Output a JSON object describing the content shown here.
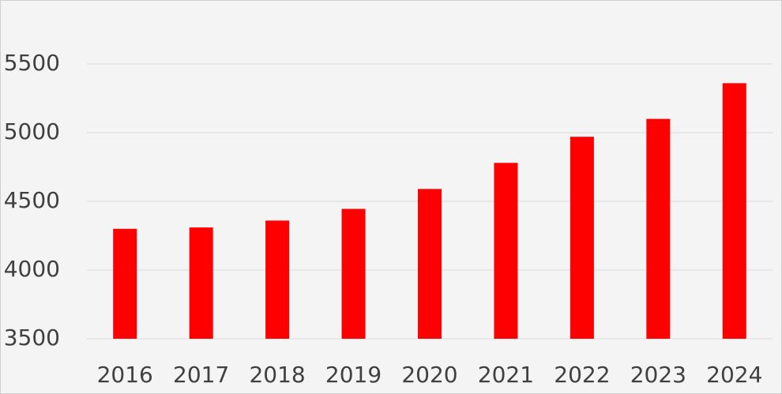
{
  "chart_data": {
    "type": "bar",
    "categories": [
      "2016",
      "2017",
      "2018",
      "2019",
      "2020",
      "2021",
      "2022",
      "2023",
      "2024"
    ],
    "values": [
      4300,
      4310,
      4360,
      4445,
      4590,
      4780,
      4970,
      5100,
      5360
    ],
    "color": "#ff0000",
    "ylim": [
      3500,
      5500
    ],
    "yticks": [
      3500,
      4000,
      4500,
      5000,
      5500
    ],
    "grid": true
  }
}
